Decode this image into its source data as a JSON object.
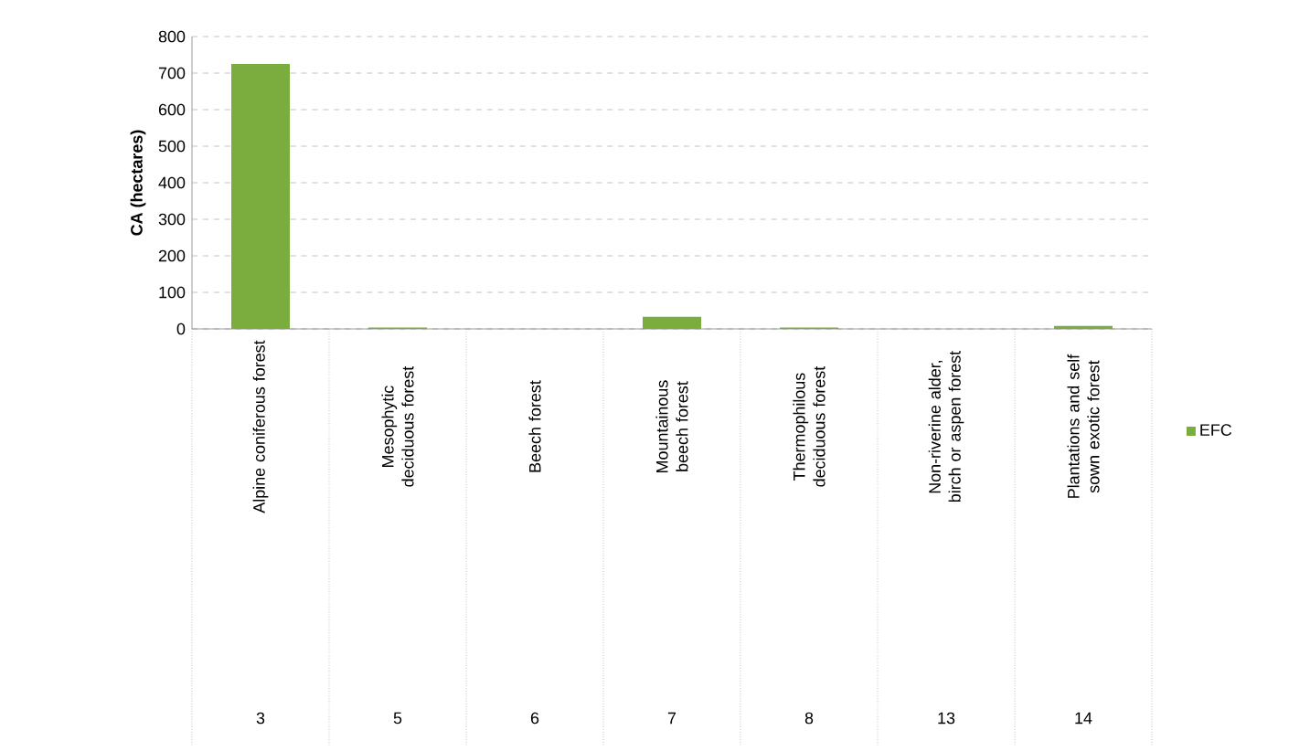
{
  "chart_data": {
    "type": "bar",
    "ylabel": "CA (hectares)",
    "categories": [
      "Alpine coniferous forest",
      "Mesophytic deciduous forest",
      "Beech forest",
      "Mountainous beech forest",
      "Thermophilous deciduous forest",
      "Non-riverine alder, birch or aspen forest",
      "Plantations and self sown exotic forest"
    ],
    "series": [
      {
        "name": "EFC",
        "color": "#7bac3e",
        "values": [
          725,
          4,
          0,
          33,
          4,
          0,
          8
        ]
      }
    ],
    "ylim": [
      0,
      800
    ],
    "yticks": [
      0,
      100,
      200,
      300,
      400,
      500,
      600,
      700,
      800
    ],
    "grid": "y",
    "legend": "right",
    "annotations": [
      "3",
      "5",
      "6",
      "7",
      "8",
      "13",
      "14"
    ]
  }
}
